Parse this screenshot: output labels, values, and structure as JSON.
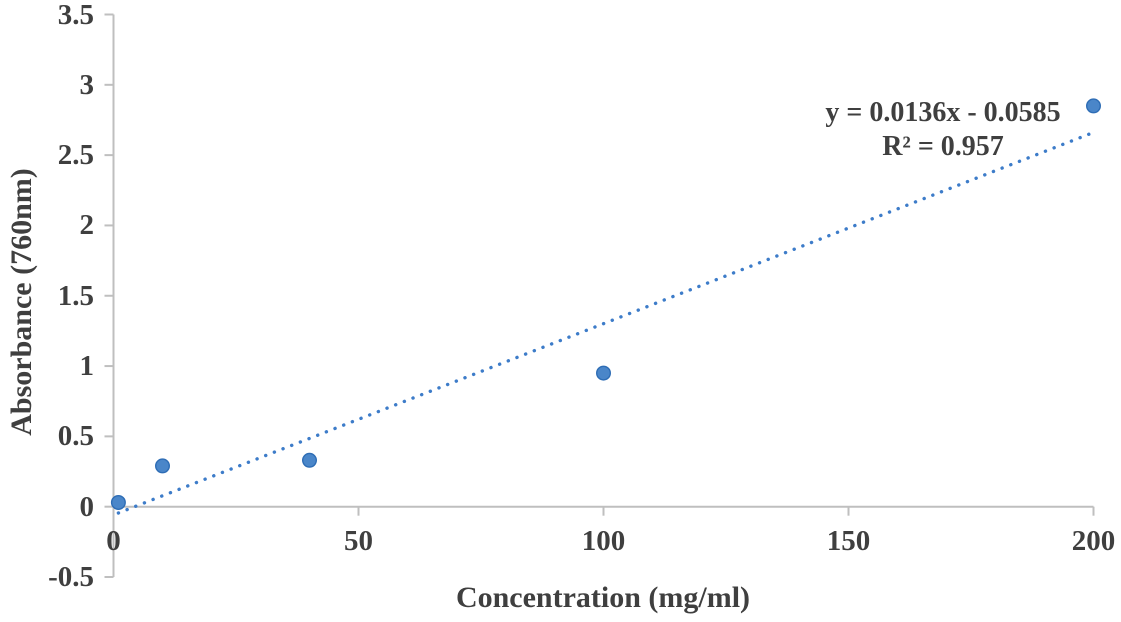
{
  "chart_data": {
    "type": "scatter",
    "title": "",
    "xlabel": "Concentration (mg/ml)",
    "ylabel": "Absorbance (760nm)",
    "points": {
      "x": [
        1,
        10,
        40,
        100,
        200
      ],
      "y": [
        0.03,
        0.29,
        0.33,
        0.95,
        2.85
      ]
    },
    "trendline": {
      "kind": "linear",
      "slope": 0.0136,
      "intercept": -0.0585,
      "x_start": 1,
      "x_end": 200,
      "style": "dotted"
    },
    "equation_line1": "y = 0.0136x - 0.0585",
    "equation_line2": "R² = 0.957",
    "xlim": [
      0,
      200
    ],
    "ylim": [
      -0.5,
      3.5
    ],
    "x_ticks": [
      0,
      50,
      100,
      150,
      200
    ],
    "y_ticks": [
      3.5,
      3,
      2.5,
      2,
      1.5,
      1,
      0.5,
      0,
      -0.5
    ],
    "grid": false,
    "legend": "none",
    "colors": {
      "marker_fill": "#4a86c9",
      "marker_stroke": "#2e6db5",
      "trendline": "#3d7cc9",
      "axis": "#bfbfbf",
      "text": "#3f3f3f"
    }
  }
}
